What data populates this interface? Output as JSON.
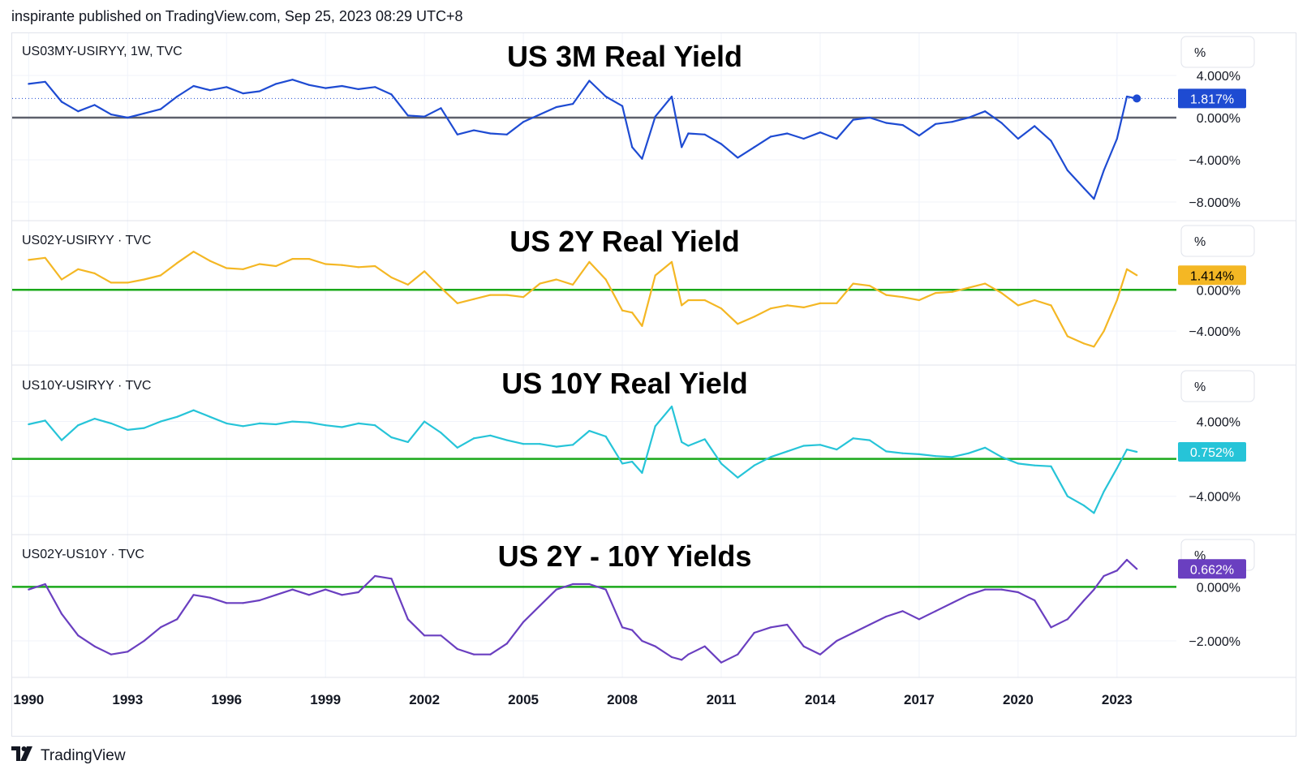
{
  "header": {
    "publisher_line": "inspirante published on TradingView.com, Sep 25, 2023 08:29 UTC+8"
  },
  "footer": {
    "brand": "TradingView",
    "logo_icon": "tradingview-logo-icon"
  },
  "colors": {
    "blue": "#1e4bd2",
    "yellow": "#f4b724",
    "cyan": "#26c4d8",
    "purple": "#6a3fc0",
    "green_zero": "#1aa81a",
    "gray_zero": "#5d606b",
    "grid": "#f0f3fa",
    "border": "#e0e3eb"
  },
  "chart_data": [
    {
      "type": "line",
      "symbol": "US03MY-USIRYY, 1W, TVC",
      "title": "US 3M Real Yield",
      "unit_button": "%",
      "last_value_label": "1.817%",
      "color": "#1e4bd2",
      "zero_line_color": "#5d606b",
      "ylim": [
        -9,
        5
      ],
      "y_ticks": [
        4,
        0,
        -4,
        -8
      ],
      "y_tick_labels": [
        "4.000%",
        "0.000%",
        "−4.000%",
        "−8.000%"
      ],
      "x": [
        1990,
        1990.5,
        1991,
        1991.5,
        1992,
        1992.5,
        1993,
        1993.5,
        1994,
        1994.5,
        1995,
        1995.5,
        1996,
        1996.5,
        1997,
        1997.5,
        1998,
        1998.5,
        1999,
        1999.5,
        2000,
        2000.5,
        2001,
        2001.5,
        2002,
        2002.5,
        2003,
        2003.5,
        2004,
        2004.5,
        2005,
        2005.5,
        2006,
        2006.5,
        2007,
        2007.5,
        2008,
        2008.3,
        2008.6,
        2009,
        2009.5,
        2009.8,
        2010,
        2010.5,
        2011,
        2011.5,
        2012,
        2012.5,
        2013,
        2013.5,
        2014,
        2014.5,
        2015,
        2015.5,
        2016,
        2016.5,
        2017,
        2017.5,
        2018,
        2018.5,
        2019,
        2019.5,
        2020,
        2020.5,
        2021,
        2021.5,
        2022,
        2022.3,
        2022.6,
        2023,
        2023.3,
        2023.6
      ],
      "y": [
        3.2,
        3.4,
        1.5,
        0.6,
        1.2,
        0.3,
        0.0,
        0.4,
        0.8,
        2.0,
        3.0,
        2.6,
        2.9,
        2.3,
        2.5,
        3.2,
        3.6,
        3.1,
        2.8,
        3.0,
        2.7,
        2.9,
        2.2,
        0.2,
        0.1,
        0.9,
        -1.6,
        -1.2,
        -1.5,
        -1.6,
        -0.4,
        0.3,
        1.0,
        1.3,
        3.5,
        2.0,
        1.1,
        -2.8,
        -3.9,
        0.1,
        2.0,
        -2.8,
        -1.5,
        -1.6,
        -2.5,
        -3.8,
        -2.8,
        -1.8,
        -1.5,
        -2.0,
        -1.4,
        -2.0,
        -0.2,
        0.0,
        -0.5,
        -0.7,
        -1.7,
        -0.6,
        -0.4,
        0.0,
        0.6,
        -0.5,
        -2.0,
        -0.8,
        -2.2,
        -5.0,
        -6.7,
        -7.7,
        -5.0,
        -2.0,
        2.0,
        1.817
      ]
    },
    {
      "type": "line",
      "symbol": "US02Y-USIRYY · TVC",
      "title": "US 2Y Real Yield",
      "unit_button": "%",
      "last_value_label": "1.414%",
      "color": "#f4b724",
      "zero_line_color": "#1aa81a",
      "ylim": [
        -6.5,
        4.5
      ],
      "y_ticks": [
        0,
        -4
      ],
      "y_tick_labels": [
        "0.000%",
        "−4.000%"
      ],
      "x": [
        1990,
        1990.5,
        1991,
        1991.5,
        1992,
        1992.5,
        1993,
        1993.5,
        1994,
        1994.5,
        1995,
        1995.5,
        1996,
        1996.5,
        1997,
        1997.5,
        1998,
        1998.5,
        1999,
        1999.5,
        2000,
        2000.5,
        2001,
        2001.5,
        2002,
        2002.5,
        2003,
        2003.5,
        2004,
        2004.5,
        2005,
        2005.5,
        2006,
        2006.5,
        2007,
        2007.5,
        2008,
        2008.3,
        2008.6,
        2009,
        2009.5,
        2009.8,
        2010,
        2010.5,
        2011,
        2011.5,
        2012,
        2012.5,
        2013,
        2013.5,
        2014,
        2014.5,
        2015,
        2015.5,
        2016,
        2016.5,
        2017,
        2017.5,
        2018,
        2018.5,
        2019,
        2019.5,
        2020,
        2020.5,
        2021,
        2021.5,
        2022,
        2022.3,
        2022.6,
        2023,
        2023.3,
        2023.6
      ],
      "y": [
        2.9,
        3.1,
        1.0,
        2.0,
        1.6,
        0.7,
        0.7,
        1.0,
        1.4,
        2.6,
        3.7,
        2.8,
        2.1,
        2.0,
        2.5,
        2.3,
        3.0,
        3.0,
        2.5,
        2.4,
        2.2,
        2.3,
        1.2,
        0.5,
        1.8,
        0.2,
        -1.3,
        -0.9,
        -0.5,
        -0.5,
        -0.7,
        0.6,
        1.0,
        0.5,
        2.7,
        1.0,
        -2.0,
        -2.2,
        -3.5,
        1.4,
        2.7,
        -1.5,
        -1.0,
        -1.0,
        -1.8,
        -3.3,
        -2.6,
        -1.8,
        -1.5,
        -1.7,
        -1.3,
        -1.3,
        0.6,
        0.4,
        -0.5,
        -0.7,
        -1.0,
        -0.3,
        -0.2,
        0.2,
        0.6,
        -0.3,
        -1.5,
        -1.0,
        -1.5,
        -4.5,
        -5.2,
        -5.5,
        -4.0,
        -1.0,
        2.0,
        1.414
      ]
    },
    {
      "type": "line",
      "symbol": "US10Y-USIRYY · TVC",
      "title": "US 10Y Real Yield",
      "unit_button": "%",
      "last_value_label": "0.752%",
      "color": "#26c4d8",
      "zero_line_color": "#1aa81a",
      "ylim": [
        -7.5,
        7
      ],
      "y_ticks": [
        4,
        -4
      ],
      "y_tick_labels": [
        "4.000%",
        "−4.000%"
      ],
      "x": [
        1990,
        1990.5,
        1991,
        1991.5,
        1992,
        1992.5,
        1993,
        1993.5,
        1994,
        1994.5,
        1995,
        1995.5,
        1996,
        1996.5,
        1997,
        1997.5,
        1998,
        1998.5,
        1999,
        1999.5,
        2000,
        2000.5,
        2001,
        2001.5,
        2002,
        2002.5,
        2003,
        2003.5,
        2004,
        2004.5,
        2005,
        2005.5,
        2006,
        2006.5,
        2007,
        2007.5,
        2008,
        2008.3,
        2008.6,
        2009,
        2009.5,
        2009.8,
        2010,
        2010.5,
        2011,
        2011.5,
        2012,
        2012.5,
        2013,
        2013.5,
        2014,
        2014.5,
        2015,
        2015.5,
        2016,
        2016.5,
        2017,
        2017.5,
        2018,
        2018.5,
        2019,
        2019.5,
        2020,
        2020.5,
        2021,
        2021.5,
        2022,
        2022.3,
        2022.6,
        2023,
        2023.3,
        2023.6
      ],
      "y": [
        3.7,
        4.1,
        2.0,
        3.6,
        4.3,
        3.8,
        3.1,
        3.3,
        4.0,
        4.5,
        5.2,
        4.5,
        3.8,
        3.5,
        3.8,
        3.7,
        4.0,
        3.9,
        3.6,
        3.4,
        3.8,
        3.6,
        2.3,
        1.8,
        4.0,
        2.8,
        1.2,
        2.2,
        2.5,
        2.0,
        1.6,
        1.6,
        1.3,
        1.5,
        3.0,
        2.4,
        -0.5,
        -0.3,
        -1.5,
        3.5,
        5.6,
        1.8,
        1.4,
        2.1,
        -0.5,
        -2.0,
        -0.7,
        0.2,
        0.8,
        1.4,
        1.5,
        1.0,
        2.2,
        2.0,
        0.8,
        0.6,
        0.5,
        0.3,
        0.2,
        0.6,
        1.2,
        0.2,
        -0.5,
        -0.7,
        -0.8,
        -4.0,
        -5.0,
        -5.8,
        -3.5,
        -1.0,
        1.0,
        0.752
      ]
    },
    {
      "type": "line",
      "symbol": "US02Y-US10Y · TVC",
      "title": "US 2Y - 10Y Yields",
      "unit_button": "%",
      "last_value_label": "0.662%",
      "color": "#6a3fc0",
      "zero_line_color": "#1aa81a",
      "ylim": [
        -3.2,
        1.3
      ],
      "y_ticks": [
        0,
        -2
      ],
      "y_tick_labels": [
        "0.000%",
        "−2.000%"
      ],
      "x": [
        1990,
        1990.5,
        1991,
        1991.5,
        1992,
        1992.5,
        1993,
        1993.5,
        1994,
        1994.5,
        1995,
        1995.5,
        1996,
        1996.5,
        1997,
        1997.5,
        1998,
        1998.5,
        1999,
        1999.5,
        2000,
        2000.5,
        2001,
        2001.5,
        2002,
        2002.5,
        2003,
        2003.5,
        2004,
        2004.5,
        2005,
        2005.5,
        2006,
        2006.5,
        2007,
        2007.5,
        2008,
        2008.3,
        2008.6,
        2009,
        2009.5,
        2009.8,
        2010,
        2010.5,
        2011,
        2011.5,
        2012,
        2012.5,
        2013,
        2013.5,
        2014,
        2014.5,
        2015,
        2015.5,
        2016,
        2016.5,
        2017,
        2017.5,
        2018,
        2018.5,
        2019,
        2019.5,
        2020,
        2020.5,
        2021,
        2021.5,
        2022,
        2022.3,
        2022.6,
        2023,
        2023.3,
        2023.6
      ],
      "y": [
        -0.1,
        0.1,
        -1.0,
        -1.8,
        -2.2,
        -2.5,
        -2.4,
        -2.0,
        -1.5,
        -1.2,
        -0.3,
        -0.4,
        -0.6,
        -0.6,
        -0.5,
        -0.3,
        -0.1,
        -0.3,
        -0.1,
        -0.3,
        -0.2,
        0.4,
        0.3,
        -1.2,
        -1.8,
        -1.8,
        -2.3,
        -2.5,
        -2.5,
        -2.1,
        -1.3,
        -0.7,
        -0.1,
        0.1,
        0.1,
        -0.1,
        -1.5,
        -1.6,
        -2.0,
        -2.2,
        -2.6,
        -2.7,
        -2.5,
        -2.2,
        -2.8,
        -2.5,
        -1.7,
        -1.5,
        -1.4,
        -2.2,
        -2.5,
        -2.0,
        -1.7,
        -1.4,
        -1.1,
        -0.9,
        -1.2,
        -0.9,
        -0.6,
        -0.3,
        -0.1,
        -0.1,
        -0.2,
        -0.5,
        -1.5,
        -1.2,
        -0.5,
        -0.1,
        0.4,
        0.6,
        1.0,
        0.662
      ]
    }
  ],
  "x_axis": {
    "ticks": [
      1990,
      1993,
      1996,
      1999,
      2002,
      2005,
      2008,
      2011,
      2014,
      2017,
      2020,
      2023
    ],
    "tick_labels": [
      "1990",
      "1993",
      "1996",
      "1999",
      "2002",
      "2005",
      "2008",
      "2011",
      "2014",
      "2017",
      "2020",
      "2023"
    ],
    "range": [
      1989.5,
      2024.8
    ]
  }
}
